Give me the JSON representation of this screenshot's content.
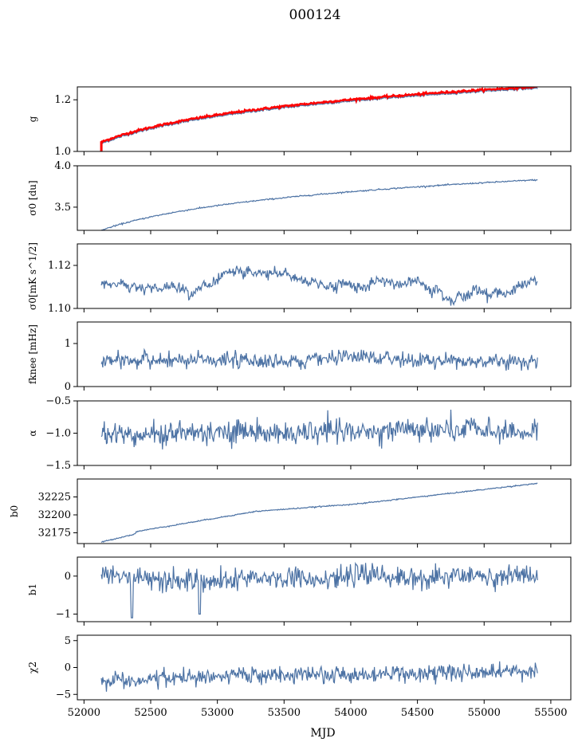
{
  "figure": {
    "title": "000124",
    "xlabel": "MJD",
    "colors": {
      "series": "#4c72a4",
      "fit": "#ff0000"
    }
  },
  "chart_data": [
    {
      "type": "line",
      "ylabel": "g",
      "ylim": [
        1.0,
        1.25
      ],
      "yticks": [
        "1.0",
        "1.2"
      ],
      "ytick_values": [
        1.0,
        1.2
      ],
      "shape": "rising_log",
      "y_start": 1.03,
      "y_end": 1.245,
      "noise": 0.002,
      "red_overlay": true,
      "red_offset": 0.006
    },
    {
      "type": "line",
      "ylabel": "σ0 [du]",
      "ylim": [
        3.22,
        4.0
      ],
      "yticks": [
        "3.5",
        "4.0"
      ],
      "ytick_values": [
        3.5,
        4.0
      ],
      "shape": "rising_log",
      "y_start": 3.22,
      "y_end": 3.83,
      "noise": 0.004
    },
    {
      "type": "line",
      "ylabel": "σ0[mK s^1/2]",
      "ylim": [
        1.1,
        1.13
      ],
      "yticks": [
        "1.10",
        "1.12"
      ],
      "ytick_values": [
        1.1,
        1.12
      ],
      "shape": "noisy_flat",
      "y_mean": 1.111,
      "noise": 0.0012,
      "wander": 0.002
    },
    {
      "type": "line",
      "ylabel": "fknee [mHz]",
      "ylim": [
        0,
        1.5
      ],
      "yticks": [
        "0",
        "1"
      ],
      "ytick_values": [
        0,
        1
      ],
      "shape": "noisy_flat",
      "y_mean": 0.6,
      "noise": 0.09,
      "wander": 0.02
    },
    {
      "type": "line",
      "ylabel": "α",
      "ylim": [
        -1.5,
        -0.5
      ],
      "yticks": [
        "−1.5",
        "−1.0",
        "−0.5"
      ],
      "ytick_values": [
        -1.5,
        -1.0,
        -0.5
      ],
      "shape": "noisy_flat",
      "y_mean": -1.0,
      "noise": 0.09,
      "wander": 0.02
    },
    {
      "type": "line",
      "ylabel": "b0",
      "ylim": [
        32160,
        32250
      ],
      "yticks": [
        "32175",
        "32200",
        "32225"
      ],
      "ytick_values": [
        32175,
        32200,
        32225
      ],
      "shape": "rising_steps",
      "y_start": 32162,
      "y_end": 32244,
      "noise": 0.4
    },
    {
      "type": "line",
      "ylabel": "b1",
      "ylim": [
        -1.2,
        0.5
      ],
      "yticks": [
        "−1",
        "0"
      ],
      "ytick_values": [
        -1,
        0
      ],
      "shape": "noisy_flat_dips",
      "y_mean": -0.05,
      "noise": 0.14,
      "wander": 0.04
    },
    {
      "type": "line",
      "ylabel": "χ2",
      "ylim": [
        -6,
        6
      ],
      "yticks": [
        "−5",
        "0",
        "5"
      ],
      "ytick_values": [
        -5,
        0,
        5
      ],
      "shape": "noisy_rising",
      "y_start": -2.3,
      "y_end": -0.4,
      "noise": 0.75
    }
  ],
  "x_axis": {
    "xlim": [
      51950,
      55650
    ],
    "xticks": [
      "52000",
      "52500",
      "53000",
      "53500",
      "54000",
      "54500",
      "55000",
      "55500"
    ],
    "xtick_values": [
      52000,
      52500,
      53000,
      53500,
      54000,
      54500,
      55000,
      55500
    ],
    "data_start": 52130,
    "data_end": 55400
  }
}
